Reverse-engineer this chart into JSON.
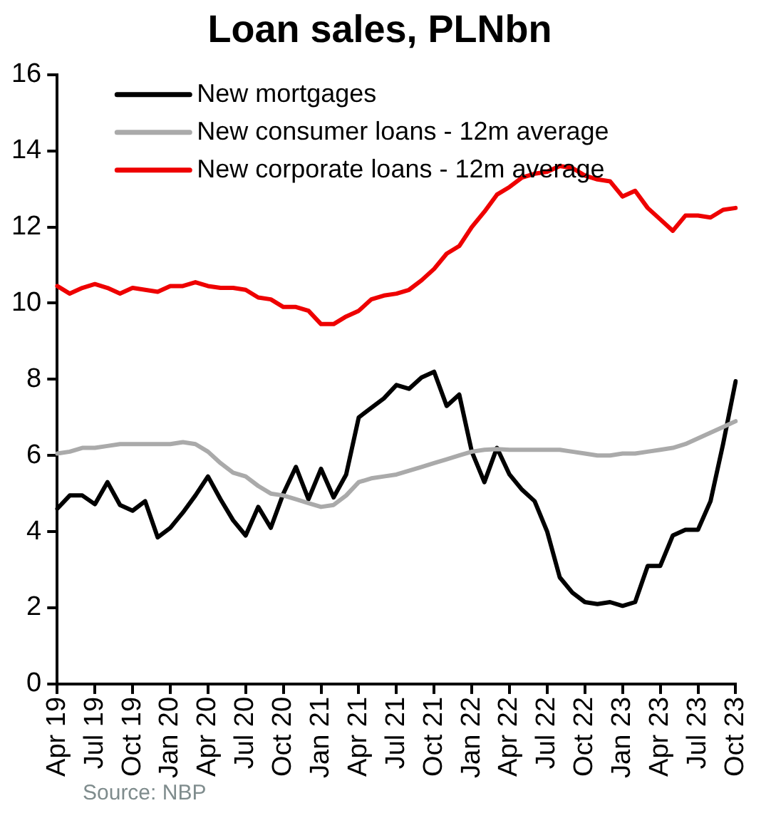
{
  "chart_data": {
    "type": "line",
    "title": "Loan sales, PLNbn",
    "categories": [
      "Apr 19",
      null,
      null,
      "Jul 19",
      null,
      null,
      "Oct 19",
      null,
      null,
      "Jan 20",
      null,
      null,
      "Apr 20",
      null,
      null,
      "Jul 20",
      null,
      null,
      "Oct 20",
      null,
      null,
      "Jan 21",
      null,
      null,
      "Apr 21",
      null,
      null,
      "Jul 21",
      null,
      null,
      "Oct 21",
      null,
      null,
      "Jan 22",
      null,
      null,
      "Apr 22",
      null,
      null,
      "Jul 22",
      null,
      null,
      "Oct 22",
      null,
      null,
      "Jan 23",
      null,
      null,
      "Apr 23",
      null,
      null,
      "Jul 23",
      null,
      null,
      "Oct 23"
    ],
    "series": [
      {
        "name": "New mortgages",
        "color": "#000000",
        "values": [
          4.6,
          4.95,
          4.95,
          4.72,
          5.3,
          4.7,
          4.55,
          4.8,
          3.85,
          4.1,
          4.5,
          4.95,
          5.45,
          4.85,
          4.3,
          3.9,
          4.65,
          4.1,
          5.0,
          5.7,
          4.85,
          5.65,
          4.9,
          5.5,
          7.0,
          7.25,
          7.5,
          7.85,
          7.75,
          8.05,
          8.2,
          7.3,
          7.6,
          6.1,
          5.3,
          6.2,
          5.5,
          5.1,
          4.8,
          4.0,
          2.8,
          2.4,
          2.15,
          2.1,
          2.15,
          2.05,
          2.15,
          3.1,
          3.1,
          3.9,
          4.05,
          4.05,
          4.8,
          6.3,
          7.95
        ]
      },
      {
        "name": "New consumer loans - 12m average",
        "color": "#aaaaaa",
        "values": [
          6.05,
          6.1,
          6.2,
          6.2,
          6.25,
          6.3,
          6.3,
          6.3,
          6.3,
          6.3,
          6.35,
          6.3,
          6.1,
          5.8,
          5.55,
          5.45,
          5.2,
          5.0,
          4.95,
          4.85,
          4.75,
          4.65,
          4.7,
          4.95,
          5.3,
          5.4,
          5.45,
          5.5,
          5.6,
          5.7,
          5.8,
          5.9,
          6.0,
          6.1,
          6.15,
          6.17,
          6.15,
          6.15,
          6.15,
          6.15,
          6.15,
          6.1,
          6.05,
          6.0,
          6.0,
          6.05,
          6.05,
          6.1,
          6.15,
          6.2,
          6.3,
          6.45,
          6.6,
          6.75,
          6.9
        ]
      },
      {
        "name": "New corporate loans - 12m average",
        "color": "#ee0000",
        "values": [
          10.45,
          10.25,
          10.4,
          10.5,
          10.4,
          10.25,
          10.4,
          10.35,
          10.3,
          10.45,
          10.45,
          10.55,
          10.45,
          10.4,
          10.4,
          10.35,
          10.15,
          10.1,
          9.9,
          9.9,
          9.8,
          9.45,
          9.45,
          9.65,
          9.8,
          10.1,
          10.2,
          10.25,
          10.35,
          10.6,
          10.9,
          11.3,
          11.5,
          12.0,
          12.4,
          12.85,
          13.05,
          13.3,
          13.4,
          13.45,
          13.6,
          13.55,
          13.35,
          13.25,
          13.2,
          12.8,
          12.95,
          12.5,
          12.2,
          11.9,
          12.3,
          12.3,
          12.25,
          12.45,
          12.5
        ]
      }
    ],
    "ylim": [
      0,
      16
    ],
    "yticks": [
      0,
      2,
      4,
      6,
      8,
      10,
      12,
      14,
      16
    ],
    "grid": false,
    "legend": "top left",
    "marker": "none",
    "line_style": "solid",
    "annotations": [
      "Source: NBP"
    ]
  }
}
